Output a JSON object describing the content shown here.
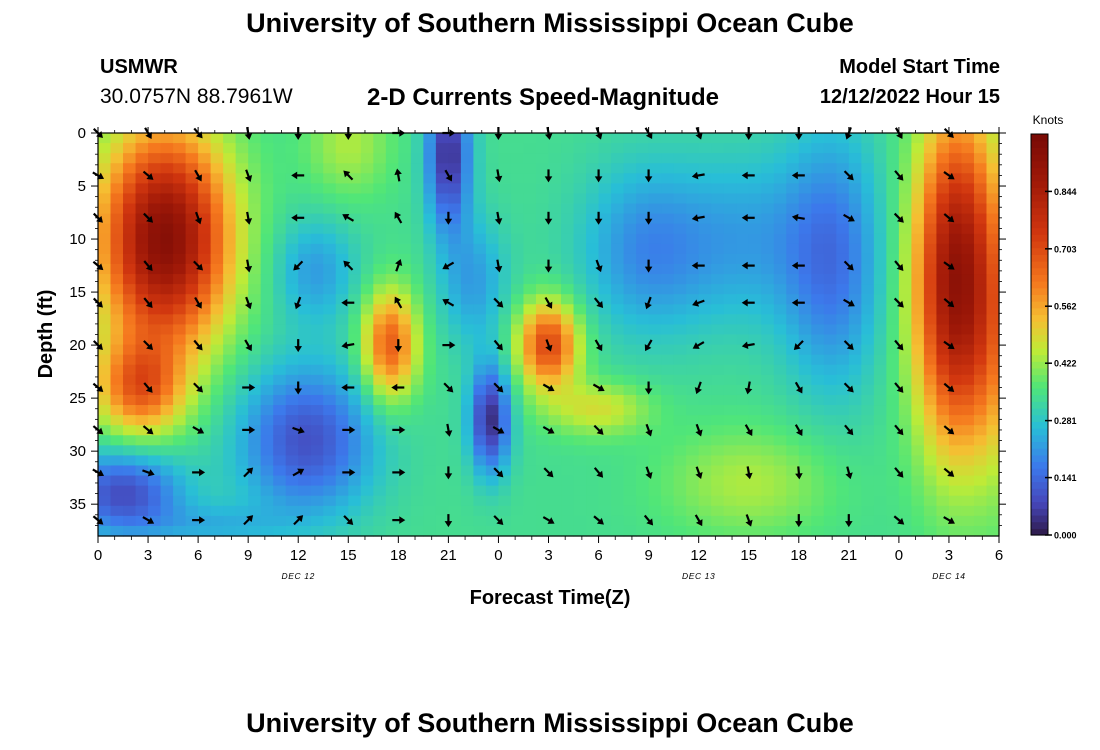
{
  "header": {
    "title": "University of Southern Mississippi Ocean Cube",
    "station_id": "USMWR",
    "coords": "30.0757N  88.7961W",
    "plot_title": "2-D Currents Speed-Magnitude",
    "model_start_label": "Model Start Time",
    "model_start_value": "12/12/2022 Hour 15"
  },
  "footer": {
    "title": "University of Southern Mississippi Ocean Cube"
  },
  "chart_data": {
    "type": "heatmap",
    "title": "2-D Currents Speed-Magnitude",
    "xlabel": "Forecast Time(Z)",
    "ylabel": "Depth (ft)",
    "x_ticks": [
      "0",
      "3",
      "6",
      "9",
      "12",
      "15",
      "18",
      "21",
      "0",
      "3",
      "6",
      "9",
      "12",
      "15",
      "18",
      "21",
      "0",
      "3",
      "6"
    ],
    "x_day_labels": [
      {
        "label": "DEC 12",
        "at_hour": 12
      },
      {
        "label": "DEC 13",
        "at_hour": 36
      },
      {
        "label": "DEC 14",
        "at_hour": 51
      }
    ],
    "x_range_hours": [
      0,
      54
    ],
    "y_ticks": [
      0,
      5,
      10,
      15,
      20,
      25,
      30,
      35
    ],
    "ylim": [
      0,
      38
    ],
    "y_inverted": true,
    "colorbar": {
      "label": "Knots",
      "ticks": [
        "0.000",
        "0.141",
        "0.281",
        "0.422",
        "0.562",
        "0.703",
        "0.844"
      ],
      "range": [
        0,
        0.985
      ]
    },
    "vector_x_hours": [
      0,
      3,
      6,
      9,
      12,
      15,
      18,
      21,
      24,
      27,
      30,
      33,
      36,
      39,
      42,
      45,
      48,
      51
    ],
    "vector_depths": [
      0,
      4,
      8,
      12.5,
      16,
      20,
      24,
      28,
      32,
      36.5
    ],
    "directions_deg": [
      [
        135,
        150,
        140,
        170,
        180,
        180,
        90,
        90,
        180,
        170,
        160,
        150,
        160,
        180,
        180,
        200,
        150,
        135
      ],
      [
        120,
        130,
        150,
        160,
        270,
        315,
        350,
        150,
        170,
        180,
        180,
        180,
        260,
        270,
        270,
        135,
        140,
        125
      ],
      [
        135,
        135,
        160,
        170,
        270,
        300,
        330,
        180,
        170,
        180,
        180,
        180,
        260,
        270,
        280,
        120,
        135,
        130
      ],
      [
        130,
        140,
        135,
        170,
        225,
        315,
        20,
        240,
        170,
        180,
        160,
        180,
        270,
        270,
        270,
        135,
        140,
        125
      ],
      [
        135,
        140,
        150,
        160,
        200,
        270,
        330,
        300,
        135,
        150,
        140,
        200,
        250,
        270,
        270,
        120,
        135,
        130
      ],
      [
        135,
        135,
        140,
        150,
        180,
        260,
        180,
        90,
        140,
        160,
        150,
        210,
        240,
        260,
        225,
        135,
        140,
        125
      ],
      [
        130,
        140,
        135,
        90,
        180,
        270,
        270,
        135,
        135,
        120,
        120,
        180,
        200,
        190,
        150,
        135,
        140,
        130
      ],
      [
        130,
        130,
        120,
        90,
        110,
        90,
        90,
        170,
        120,
        120,
        135,
        160,
        160,
        150,
        150,
        140,
        140,
        130
      ],
      [
        120,
        110,
        90,
        45,
        60,
        90,
        90,
        180,
        135,
        135,
        140,
        160,
        160,
        170,
        175,
        165,
        140,
        130
      ],
      [
        130,
        120,
        90,
        45,
        45,
        135,
        90,
        180,
        135,
        120,
        130,
        140,
        150,
        160,
        180,
        180,
        130,
        120
      ]
    ]
  }
}
